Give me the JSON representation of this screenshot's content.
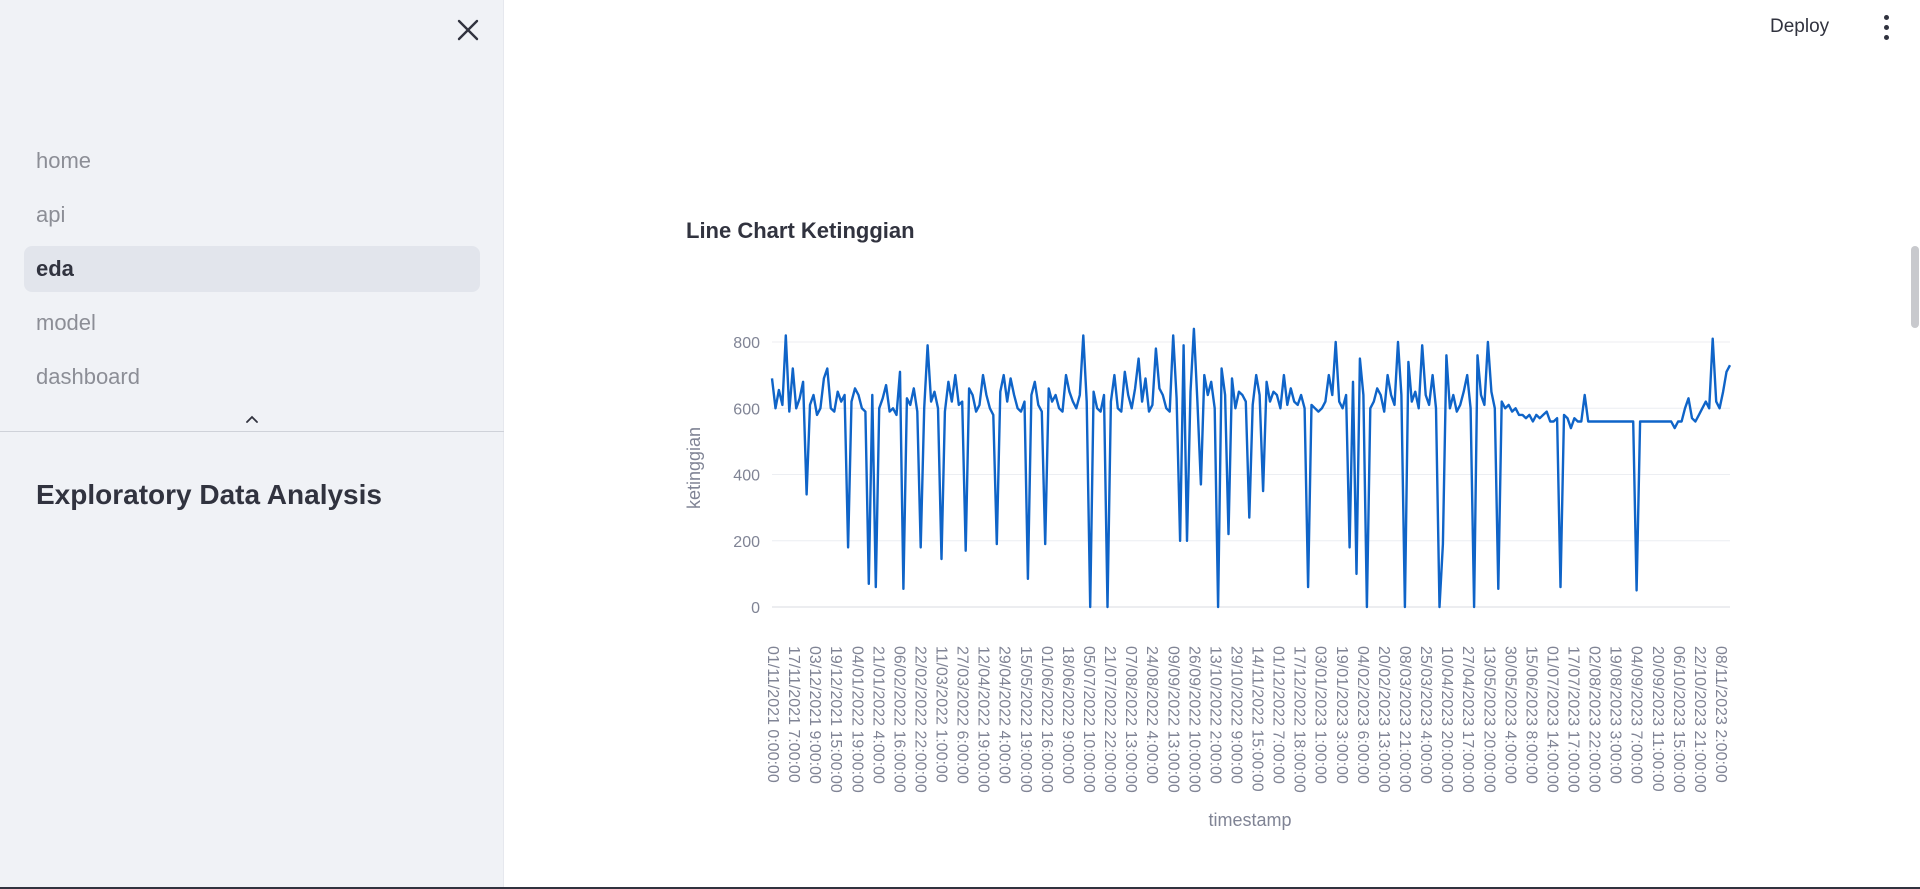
{
  "sidebar": {
    "nav_items": [
      {
        "label": "home"
      },
      {
        "label": "api"
      },
      {
        "label": "eda",
        "active": true
      },
      {
        "label": "model"
      },
      {
        "label": "dashboard"
      }
    ],
    "title": "Exploratory Data Analysis"
  },
  "header": {
    "deploy_label": "Deploy"
  },
  "main": {
    "chart_title": "Line Chart Ketinggian"
  },
  "colors": {
    "line": "#0f64c8",
    "sidebar_bg": "#f0f2f6",
    "active_item_bg": "#e2e5ec"
  },
  "chart_data": {
    "type": "line",
    "title": "Line Chart Ketinggian",
    "xlabel": "timestamp",
    "ylabel": "ketinggian",
    "ylim": [
      0,
      850
    ],
    "yticks": [
      0,
      200,
      400,
      600,
      800
    ],
    "grid": true,
    "xtick_labels": [
      "01/11/2021 0:00:00",
      "17/11/2021 7:00:00",
      "03/12/2021 9:00:00",
      "19/12/2021 15:00:00",
      "04/01/2022 19:00:00",
      "21/01/2022 4:00:00",
      "06/02/2022 16:00:00",
      "22/02/2022 22:00:00",
      "11/03/2022 1:00:00",
      "27/03/2022 6:00:00",
      "12/04/2022 19:00:00",
      "29/04/2022 4:00:00",
      "15/05/2022 19:00:00",
      "01/06/2022 16:00:00",
      "18/06/2022 9:00:00",
      "05/07/2022 10:00:00",
      "21/07/2022 22:00:00",
      "07/08/2022 13:00:00",
      "24/08/2022 4:00:00",
      "09/09/2022 13:00:00",
      "26/09/2022 10:00:00",
      "13/10/2022 2:00:00",
      "29/10/2022 9:00:00",
      "14/11/2022 15:00:00",
      "01/12/2022 7:00:00",
      "17/12/2022 18:00:00",
      "03/01/2023 1:00:00",
      "19/01/2023 3:00:00",
      "04/02/2023 6:00:00",
      "20/02/2023 13:00:00",
      "08/03/2023 21:00:00",
      "25/03/2023 4:00:00",
      "10/04/2023 20:00:00",
      "27/04/2023 17:00:00",
      "13/05/2023 20:00:00",
      "30/05/2023 4:00:00",
      "15/06/2023 8:00:00",
      "01/07/2023 14:00:00",
      "17/07/2023 17:00:00",
      "02/08/2023 22:00:00",
      "19/08/2023 3:00:00",
      "04/09/2023 7:00:00",
      "20/09/2023 11:00:00",
      "06/10/2023 15:00:00",
      "22/10/2023 21:00:00",
      "08/11/2023 2:00:00"
    ],
    "series": [
      {
        "values": [
          690,
          600,
          655,
          610,
          820,
          590,
          720,
          600,
          630,
          680,
          340,
          610,
          640,
          580,
          600,
          690,
          720,
          600,
          590,
          650,
          620,
          640,
          180,
          620,
          660,
          640,
          600,
          590,
          70,
          640,
          60,
          600,
          630,
          670,
          590,
          600,
          580,
          710,
          55,
          630,
          610,
          660,
          590,
          180,
          600,
          790,
          620,
          650,
          600,
          145,
          590,
          680,
          620,
          700,
          610,
          620,
          170,
          660,
          640,
          590,
          610,
          700,
          640,
          600,
          580,
          190,
          650,
          700,
          620,
          690,
          640,
          600,
          590,
          620,
          85,
          640,
          680,
          610,
          590,
          190,
          660,
          620,
          640,
          600,
          590,
          700,
          650,
          620,
          600,
          640,
          820,
          620,
          0,
          650,
          600,
          590,
          640,
          0,
          620,
          700,
          600,
          590,
          710,
          640,
          600,
          660,
          750,
          620,
          690,
          590,
          610,
          780,
          660,
          640,
          600,
          590,
          820,
          630,
          200,
          790,
          200,
          650,
          840,
          620,
          370,
          700,
          640,
          680,
          600,
          0,
          720,
          640,
          220,
          690,
          600,
          650,
          640,
          620,
          270,
          610,
          700,
          640,
          350,
          680,
          620,
          650,
          640,
          600,
          700,
          610,
          660,
          620,
          610,
          640,
          600,
          60,
          610,
          600,
          590,
          600,
          620,
          700,
          640,
          800,
          620,
          600,
          640,
          180,
          680,
          100,
          750,
          640,
          0,
          600,
          620,
          660,
          640,
          590,
          700,
          640,
          610,
          800,
          640,
          0,
          740,
          620,
          650,
          600,
          790,
          640,
          610,
          700,
          600,
          0,
          190,
          760,
          600,
          640,
          590,
          610,
          650,
          700,
          600,
          0,
          760,
          640,
          610,
          800,
          650,
          600,
          55,
          620,
          600,
          610,
          590,
          600,
          580,
          580,
          570,
          580,
          560,
          580,
          570,
          580,
          590,
          560,
          560,
          570,
          60,
          580,
          570,
          540,
          570,
          560,
          560,
          640,
          560,
          560,
          560,
          560,
          560,
          560,
          560,
          560,
          560,
          560,
          560,
          560,
          560,
          560,
          50,
          560,
          560,
          560,
          560,
          560,
          560,
          560,
          560,
          560,
          560,
          540,
          560,
          560,
          600,
          630,
          570,
          560,
          580,
          600,
          620,
          600,
          810,
          620,
          600,
          650,
          710,
          730
        ]
      }
    ]
  }
}
